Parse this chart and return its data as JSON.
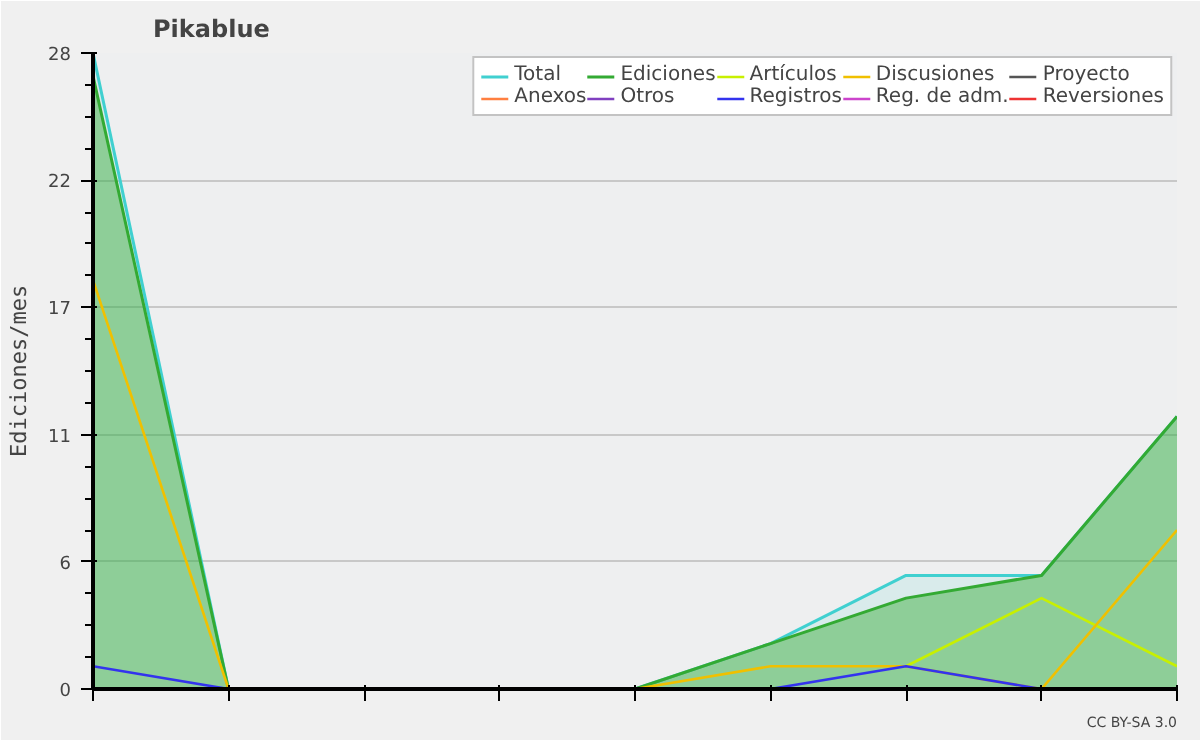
{
  "chart_data": {
    "type": "line",
    "title": "Pikablue",
    "ylabel": "Ediciones/mes",
    "categories": [
      null,
      null,
      null,
      null,
      null,
      null,
      null,
      null,
      null
    ],
    "ylim": [
      0,
      28
    ],
    "yticks": [
      0,
      {
        "value": 5.6,
        "label": "6"
      },
      {
        "value": 11.2,
        "label": "11"
      },
      {
        "value": 16.8,
        "label": "17"
      },
      {
        "value": 22.4,
        "label": "22"
      },
      28
    ],
    "grid": "y",
    "legend": "top right",
    "annotations": [
      "CC BY-SA 3.0"
    ],
    "series": [
      {
        "name": "Total",
        "type": "area",
        "color": "#40d0d0",
        "values": [
          28,
          0,
          0,
          0,
          0,
          2,
          5,
          5,
          12
        ]
      },
      {
        "name": "Ediciones",
        "type": "area",
        "color": "#33aa33",
        "values": [
          27,
          0,
          0,
          0,
          0,
          2,
          4,
          5,
          12
        ]
      },
      {
        "name": "Artículos",
        "color": "#c8f000",
        "values": [
          null,
          null,
          null,
          null,
          null,
          null,
          1,
          4,
          1
        ]
      },
      {
        "name": "Discusiones",
        "color": "#f0c000",
        "values": [
          18,
          0,
          null,
          null,
          0,
          1,
          1,
          0,
          7
        ]
      },
      {
        "name": "Proyecto",
        "color": "#555555",
        "values": [
          null,
          null,
          null,
          null,
          null,
          null,
          null,
          null,
          null
        ]
      },
      {
        "name": "Anexos",
        "color": "#ff7f40",
        "values": [
          null,
          null,
          null,
          null,
          null,
          null,
          null,
          null,
          null
        ]
      },
      {
        "name": "Otros",
        "color": "#8040c0",
        "values": [
          null,
          null,
          null,
          null,
          null,
          null,
          null,
          null,
          null
        ]
      },
      {
        "name": "Registros",
        "color": "#3333ee",
        "values": [
          1,
          0,
          null,
          null,
          null,
          0,
          1,
          0,
          null
        ]
      },
      {
        "name": "Reg. de adm.",
        "color": "#cc44cc",
        "values": [
          null,
          null,
          null,
          null,
          null,
          null,
          null,
          null,
          null
        ]
      },
      {
        "name": "Reversiones",
        "color": "#ee3333",
        "values": [
          null,
          null,
          null,
          null,
          null,
          null,
          null,
          null,
          null
        ]
      }
    ]
  }
}
